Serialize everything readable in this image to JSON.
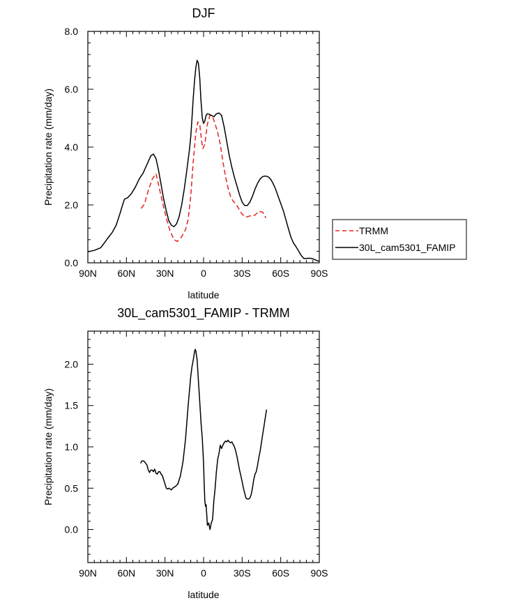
{
  "chart_data": [
    {
      "type": "line",
      "title": "DJF",
      "xlabel": "latitude",
      "ylabel": "Precipitation rate (mm/day)",
      "xlim": [
        -90,
        90
      ],
      "ylim": [
        0,
        8
      ],
      "x_ticks": [
        -90,
        -60,
        -30,
        0,
        30,
        60,
        90
      ],
      "x_tick_labels": [
        "90N",
        "60N",
        "30N",
        "0",
        "30S",
        "60S",
        "90S"
      ],
      "y_ticks": [
        0,
        2,
        4,
        6,
        8
      ],
      "y_tick_labels": [
        "0.0",
        "2.0",
        "4.0",
        "6.0",
        "8.0"
      ],
      "legend": {
        "position": "right",
        "entries": [
          "TRMM",
          "30L_cam5301_FAMIP"
        ]
      },
      "series": [
        {
          "name": "TRMM",
          "style": "dashed",
          "color": "#e8211c",
          "points": [
            [
              -48.5,
              1.88
            ],
            [
              -46,
              2.03
            ],
            [
              -43,
              2.5
            ],
            [
              -40,
              2.88
            ],
            [
              -37,
              3.08
            ],
            [
              -35,
              2.7
            ],
            [
              -32,
              2.1
            ],
            [
              -29,
              1.55
            ],
            [
              -26,
              1.1
            ],
            [
              -23,
              0.8
            ],
            [
              -20.5,
              0.74
            ],
            [
              -17,
              0.9
            ],
            [
              -14,
              1.15
            ],
            [
              -12,
              1.5
            ],
            [
              -10,
              2.3
            ],
            [
              -8,
              3.5
            ],
            [
              -6,
              4.5
            ],
            [
              -4.5,
              4.87
            ],
            [
              -3,
              4.8
            ],
            [
              -1.5,
              4.2
            ],
            [
              -0.5,
              3.95
            ],
            [
              1,
              4.1
            ],
            [
              3,
              4.8
            ],
            [
              5,
              5.1
            ],
            [
              7,
              5.05
            ],
            [
              9,
              4.8
            ],
            [
              11,
              4.5
            ],
            [
              13,
              4.1
            ],
            [
              15,
              3.5
            ],
            [
              17,
              3.0
            ],
            [
              19,
              2.6
            ],
            [
              21,
              2.3
            ],
            [
              23,
              2.13
            ],
            [
              25,
              2.05
            ],
            [
              27,
              1.9
            ],
            [
              30,
              1.68
            ],
            [
              33,
              1.58
            ],
            [
              36,
              1.62
            ],
            [
              38,
              1.62
            ],
            [
              40,
              1.65
            ],
            [
              43,
              1.78
            ],
            [
              46,
              1.75
            ],
            [
              48.5,
              1.55
            ]
          ]
        },
        {
          "name": "30L_cam5301_FAMIP",
          "style": "solid",
          "color": "#000000",
          "points": [
            [
              -90,
              0.38
            ],
            [
              -85,
              0.43
            ],
            [
              -80,
              0.52
            ],
            [
              -77,
              0.7
            ],
            [
              -74,
              0.88
            ],
            [
              -71,
              1.05
            ],
            [
              -68,
              1.3
            ],
            [
              -65,
              1.7
            ],
            [
              -63,
              2.0
            ],
            [
              -61.5,
              2.2
            ],
            [
              -59,
              2.25
            ],
            [
              -56,
              2.4
            ],
            [
              -53,
              2.62
            ],
            [
              -50,
              2.9
            ],
            [
              -47,
              3.1
            ],
            [
              -44,
              3.4
            ],
            [
              -41,
              3.7
            ],
            [
              -39,
              3.76
            ],
            [
              -37,
              3.6
            ],
            [
              -35,
              3.2
            ],
            [
              -33,
              2.7
            ],
            [
              -31,
              2.2
            ],
            [
              -29,
              1.8
            ],
            [
              -27,
              1.45
            ],
            [
              -25,
              1.3
            ],
            [
              -23,
              1.25
            ],
            [
              -21,
              1.35
            ],
            [
              -19,
              1.6
            ],
            [
              -17,
              2.0
            ],
            [
              -15,
              2.55
            ],
            [
              -13,
              3.2
            ],
            [
              -11,
              3.9
            ],
            [
              -10,
              4.35
            ],
            [
              -9,
              5.0
            ],
            [
              -8,
              5.7
            ],
            [
              -7,
              6.3
            ],
            [
              -6,
              6.75
            ],
            [
              -5,
              7.0
            ],
            [
              -4,
              6.9
            ],
            [
              -3,
              6.4
            ],
            [
              -2,
              5.6
            ],
            [
              -1,
              5.0
            ],
            [
              0,
              4.82
            ],
            [
              1,
              4.9
            ],
            [
              2,
              5.1
            ],
            [
              3,
              5.15
            ],
            [
              4,
              5.14
            ],
            [
              6,
              5.1
            ],
            [
              8,
              5.05
            ],
            [
              10,
              5.15
            ],
            [
              12,
              5.18
            ],
            [
              14,
              5.1
            ],
            [
              16,
              4.7
            ],
            [
              18,
              4.2
            ],
            [
              20,
              3.7
            ],
            [
              22,
              3.3
            ],
            [
              24,
              2.95
            ],
            [
              26,
              2.65
            ],
            [
              28,
              2.35
            ],
            [
              30,
              2.1
            ],
            [
              32,
              1.98
            ],
            [
              34,
              1.98
            ],
            [
              36,
              2.1
            ],
            [
              38,
              2.3
            ],
            [
              40,
              2.55
            ],
            [
              42,
              2.75
            ],
            [
              44,
              2.9
            ],
            [
              46,
              2.98
            ],
            [
              48,
              3.0
            ],
            [
              50,
              2.98
            ],
            [
              52,
              2.9
            ],
            [
              54,
              2.75
            ],
            [
              56,
              2.55
            ],
            [
              58,
              2.3
            ],
            [
              60,
              2.05
            ],
            [
              62,
              1.8
            ],
            [
              64,
              1.5
            ],
            [
              66,
              1.18
            ],
            [
              68,
              0.88
            ],
            [
              70,
              0.68
            ],
            [
              72,
              0.55
            ],
            [
              74,
              0.4
            ],
            [
              76,
              0.25
            ],
            [
              78,
              0.15
            ],
            [
              80,
              0.15
            ],
            [
              82,
              0.16
            ],
            [
              84,
              0.15
            ],
            [
              86,
              0.12
            ],
            [
              88,
              0.08
            ],
            [
              90,
              0.05
            ]
          ]
        }
      ]
    },
    {
      "type": "line",
      "title": "30L_cam5301_FAMIP - TRMM",
      "xlabel": "latitude",
      "ylabel": "Precipitation rate (mm/day)",
      "xlim": [
        -90,
        90
      ],
      "ylim": [
        -0.4,
        2.4
      ],
      "x_ticks": [
        -90,
        -60,
        -30,
        0,
        30,
        60,
        90
      ],
      "x_tick_labels": [
        "90N",
        "60N",
        "30N",
        "0",
        "30S",
        "60S",
        "90S"
      ],
      "y_ticks": [
        0,
        0.5,
        1,
        1.5,
        2
      ],
      "y_tick_labels": [
        "0.0",
        "0.5",
        "1.0",
        "1.5",
        "2.0"
      ],
      "series": [
        {
          "name": "30L_cam5301_FAMIP - TRMM",
          "style": "solid",
          "color": "#000000",
          "points": [
            [
              -49,
              0.8
            ],
            [
              -48,
              0.83
            ],
            [
              -46.5,
              0.83
            ],
            [
              -45,
              0.8
            ],
            [
              -44,
              0.78
            ],
            [
              -43,
              0.72
            ],
            [
              -42,
              0.69
            ],
            [
              -41,
              0.72
            ],
            [
              -40,
              0.72
            ],
            [
              -39,
              0.7
            ],
            [
              -38,
              0.73
            ],
            [
              -37,
              0.68
            ],
            [
              -36,
              0.67
            ],
            [
              -35,
              0.7
            ],
            [
              -34,
              0.7
            ],
            [
              -33,
              0.67
            ],
            [
              -32,
              0.65
            ],
            [
              -31,
              0.6
            ],
            [
              -30,
              0.55
            ],
            [
              -29,
              0.5
            ],
            [
              -28,
              0.49
            ],
            [
              -27,
              0.5
            ],
            [
              -26,
              0.49
            ],
            [
              -25,
              0.48
            ],
            [
              -24,
              0.5
            ],
            [
              -22,
              0.52
            ],
            [
              -20,
              0.55
            ],
            [
              -18,
              0.65
            ],
            [
              -16,
              0.82
            ],
            [
              -14,
              1.1
            ],
            [
              -12,
              1.5
            ],
            [
              -10,
              1.85
            ],
            [
              -9,
              1.97
            ],
            [
              -8,
              2.05
            ],
            [
              -7,
              2.15
            ],
            [
              -6.5,
              2.18
            ],
            [
              -6,
              2.16
            ],
            [
              -5,
              2.05
            ],
            [
              -4,
              1.8
            ],
            [
              -3,
              1.55
            ],
            [
              -2,
              1.3
            ],
            [
              -1,
              1.1
            ],
            [
              0,
              0.8
            ],
            [
              0.5,
              0.55
            ],
            [
              1,
              0.35
            ],
            [
              1.5,
              0.28
            ],
            [
              2,
              0.3
            ],
            [
              3,
              0.05
            ],
            [
              4,
              0.08
            ],
            [
              5,
              0.0
            ],
            [
              6,
              0.08
            ],
            [
              7,
              0.12
            ],
            [
              8,
              0.35
            ],
            [
              9,
              0.5
            ],
            [
              10,
              0.7
            ],
            [
              11,
              0.85
            ],
            [
              12,
              0.92
            ],
            [
              13,
              1.02
            ],
            [
              14,
              0.98
            ],
            [
              15,
              1.02
            ],
            [
              16,
              1.05
            ],
            [
              17,
              1.07
            ],
            [
              18,
              1.06
            ],
            [
              19,
              1.08
            ],
            [
              20,
              1.06
            ],
            [
              21,
              1.05
            ],
            [
              22,
              1.06
            ],
            [
              23,
              1.03
            ],
            [
              24,
              1.0
            ],
            [
              25,
              0.95
            ],
            [
              26,
              0.88
            ],
            [
              27,
              0.8
            ],
            [
              28,
              0.72
            ],
            [
              29,
              0.65
            ],
            [
              30,
              0.58
            ],
            [
              31,
              0.5
            ],
            [
              32,
              0.44
            ],
            [
              33,
              0.38
            ],
            [
              34,
              0.37
            ],
            [
              35,
              0.37
            ],
            [
              36,
              0.38
            ],
            [
              37,
              0.42
            ],
            [
              38,
              0.5
            ],
            [
              39,
              0.6
            ],
            [
              40,
              0.67
            ],
            [
              41,
              0.7
            ],
            [
              42,
              0.78
            ],
            [
              43,
              0.87
            ],
            [
              44,
              0.95
            ],
            [
              45,
              1.05
            ],
            [
              46,
              1.15
            ],
            [
              47,
              1.25
            ],
            [
              48,
              1.35
            ],
            [
              49,
              1.45
            ]
          ]
        }
      ]
    }
  ]
}
